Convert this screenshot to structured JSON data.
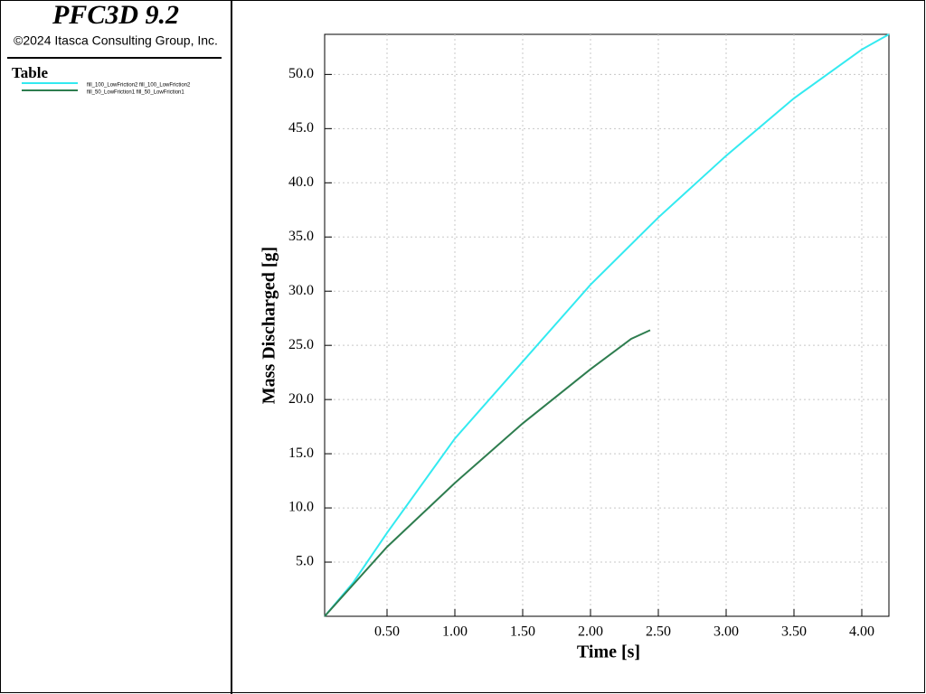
{
  "header": {
    "title": "PFC3D 9.2",
    "copyright": "©2024 Itasca Consulting Group, Inc.",
    "legend_title": "Table"
  },
  "chart_data": {
    "type": "line",
    "x_label": "Time [s]",
    "y_label": "Mass Discharged [g]",
    "xlim": [
      0.04,
      4.2
    ],
    "ylim": [
      0,
      53.7
    ],
    "xticks": [
      {
        "value": 0.5,
        "label": "0.50"
      },
      {
        "value": 1.0,
        "label": "1.00"
      },
      {
        "value": 1.5,
        "label": "1.50"
      },
      {
        "value": 2.0,
        "label": "2.00"
      },
      {
        "value": 2.5,
        "label": "2.50"
      },
      {
        "value": 3.0,
        "label": "3.00"
      },
      {
        "value": 3.5,
        "label": "3.50"
      },
      {
        "value": 4.0,
        "label": "4.00"
      }
    ],
    "yticks": [
      {
        "value": 5,
        "label": "5.0"
      },
      {
        "value": 10,
        "label": "10.0"
      },
      {
        "value": 15,
        "label": "15.0"
      },
      {
        "value": 20,
        "label": "20.0"
      },
      {
        "value": 25,
        "label": "25.0"
      },
      {
        "value": 30,
        "label": "30.0"
      },
      {
        "value": 35,
        "label": "35.0"
      },
      {
        "value": 40,
        "label": "40.0"
      },
      {
        "value": 45,
        "label": "45.0"
      },
      {
        "value": 50,
        "label": "50.0"
      }
    ],
    "grid": true,
    "series": [
      {
        "name": "fill_100_LowFriction2 fill_100_LowFriction2",
        "color": "#33eaf0",
        "x": [
          0.04,
          0.25,
          0.5,
          1.0,
          1.5,
          2.0,
          2.5,
          3.0,
          3.5,
          4.0,
          4.2
        ],
        "values": [
          0,
          3.1,
          7.7,
          16.4,
          23.5,
          30.6,
          36.8,
          42.5,
          47.8,
          52.3,
          53.7
        ]
      },
      {
        "name": "fill_50_LowFriction1 fill_50_LowFriction1",
        "color": "#2e7d4f",
        "x": [
          0.04,
          0.5,
          1.0,
          1.5,
          2.0,
          2.3,
          2.44
        ],
        "values": [
          0,
          6.4,
          12.3,
          17.8,
          22.8,
          25.6,
          26.4
        ]
      }
    ]
  }
}
